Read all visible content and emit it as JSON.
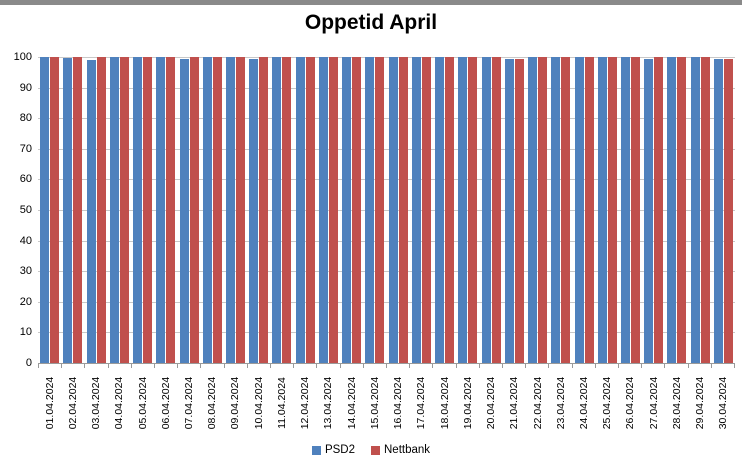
{
  "window": {
    "top_bar_color": "#8a8a8a"
  },
  "chart_data": {
    "type": "bar",
    "title": "Oppetid April",
    "categories": [
      "01.04.2024",
      "02.04.2024",
      "03.04.2024",
      "04.04.2024",
      "05.04.2024",
      "06.04.2024",
      "07.04.2024",
      "08.04.2024",
      "09.04.2024",
      "10.04.2024",
      "11.04.2024",
      "12.04.2024",
      "13.04.2024",
      "14.04.2024",
      "15.04.2024",
      "16.04.2024",
      "17.04.2024",
      "18.04.2024",
      "19.04.2024",
      "20.04.2024",
      "21.04.2024",
      "22.04.2024",
      "23.04.2024",
      "24.04.2024",
      "25.04.2024",
      "26.04.2024",
      "27.04.2024",
      "28.04.2024",
      "29.04.2024",
      "30.04.2024"
    ],
    "series": [
      {
        "name": "PSD2",
        "color": "#4F81BD",
        "values": [
          100,
          99.6,
          99.1,
          100,
          100,
          100,
          99.5,
          100,
          100,
          99.5,
          100,
          100,
          100,
          100,
          100,
          100,
          100,
          100,
          100,
          100,
          99.5,
          100,
          100,
          100,
          100,
          100,
          99.5,
          100,
          100,
          99.2
        ]
      },
      {
        "name": "Nettbank",
        "color": "#C0504D",
        "values": [
          100,
          100,
          100,
          100,
          100,
          100,
          100,
          100,
          100,
          100,
          100,
          100,
          100,
          100,
          100,
          100,
          100,
          100,
          100,
          100,
          99.2,
          100,
          100,
          100,
          100,
          100,
          100,
          100,
          100,
          99.4
        ]
      }
    ],
    "xlabel": "",
    "ylabel": "",
    "ylim": [
      0,
      100
    ],
    "yticks": [
      0,
      10,
      20,
      30,
      40,
      50,
      60,
      70,
      80,
      90,
      100
    ],
    "grid": true,
    "legend_position": "bottom"
  }
}
